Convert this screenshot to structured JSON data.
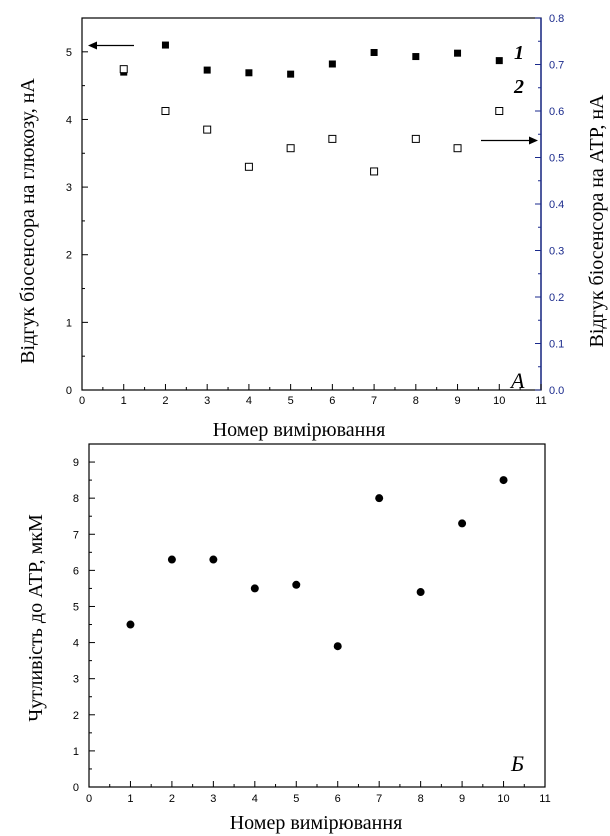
{
  "chart_data": [
    {
      "panel_label": "A",
      "type": "scatter",
      "xlabel": "Номер вимірювання",
      "ylabel_left": "Відгук біосенсора на глюкозу, нА",
      "ylabel_right": "Відгук біосенсора на АТР, нА",
      "xlim": [
        0,
        11
      ],
      "xticks": [
        "0",
        "1",
        "2",
        "3",
        "4",
        "5",
        "6",
        "7",
        "8",
        "9",
        "10",
        "11"
      ],
      "ylim_left": [
        0,
        5.5
      ],
      "yticks_left": [
        "0",
        "1",
        "2",
        "3",
        "4",
        "5"
      ],
      "ylim_right": [
        0,
        0.8
      ],
      "yticks_right": [
        "0.0",
        "0.1",
        "0.2",
        "0.3",
        "0.4",
        "0.5",
        "0.6",
        "0.7",
        "0.8"
      ],
      "right_axis_color": "#1a2a8c",
      "series": [
        {
          "label": "1",
          "marker": "filled-square",
          "axis": "left",
          "x": [
            1,
            2,
            3,
            4,
            5,
            6,
            7,
            8,
            9,
            10
          ],
          "y": [
            4.7,
            5.1,
            4.73,
            4.69,
            4.67,
            4.82,
            4.99,
            4.93,
            4.98,
            4.87
          ]
        },
        {
          "label": "2",
          "marker": "open-square",
          "axis": "right",
          "x": [
            1,
            2,
            3,
            4,
            5,
            6,
            7,
            8,
            9,
            10
          ],
          "y": [
            0.69,
            0.6,
            0.56,
            0.48,
            0.52,
            0.54,
            0.47,
            0.54,
            0.52,
            0.6
          ]
        }
      ]
    },
    {
      "panel_label": "Б",
      "type": "scatter",
      "xlabel": "Номер вимірювання",
      "ylabel": "Чутливість до АТР, мкМ",
      "xlim": [
        0,
        11
      ],
      "xticks": [
        "0",
        "1",
        "2",
        "3",
        "4",
        "5",
        "6",
        "7",
        "8",
        "9",
        "10",
        "11"
      ],
      "ylim": [
        0,
        9.5
      ],
      "yticks": [
        "0",
        "1",
        "2",
        "3",
        "4",
        "5",
        "6",
        "7",
        "8",
        "9"
      ],
      "series": [
        {
          "marker": "filled-circle",
          "x": [
            1,
            2,
            3,
            4,
            5,
            6,
            7,
            8,
            9,
            10
          ],
          "y": [
            4.5,
            6.3,
            6.3,
            5.5,
            5.6,
            3.9,
            8.0,
            5.4,
            7.3,
            8.5
          ]
        }
      ]
    }
  ]
}
